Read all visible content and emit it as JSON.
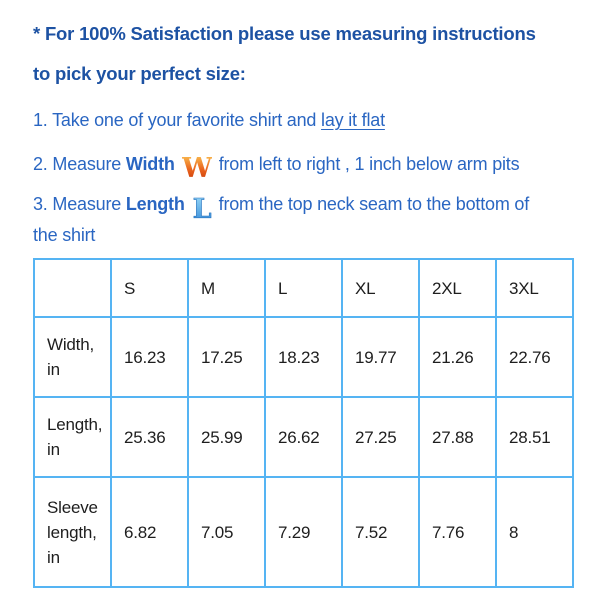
{
  "colors": {
    "heading_blue": "#1d52a3",
    "body_blue": "#2a66c2",
    "table_border_blue": "#55b4f3",
    "table_text": "#1e1e1e",
    "w_icon_gradient_top": "#fdc855",
    "w_icon_gradient_mid": "#e8611c",
    "w_icon_gradient_bottom": "#c23305",
    "l_icon_gradient_top": "#9bdbf9",
    "l_icon_gradient_bottom": "#2f86d6"
  },
  "intro": {
    "line1": "* For 100% Satisfaction please use measuring instructions",
    "line2": "to pick your perfect size:"
  },
  "steps": {
    "step1": {
      "prefix": "1. Take one of your favorite shirt and ",
      "underlined": "lay it flat"
    },
    "step2": {
      "prefix": "2. Measure ",
      "bold": "Width",
      "icon": "w-letter-icon",
      "icon_letter": "W",
      "suffix": "from left to right , 1 inch below arm pits"
    },
    "step3": {
      "prefix": "3. Measure ",
      "bold": "Length",
      "icon": "l-letter-icon",
      "icon_letter": "L",
      "suffix_line1": "from the top neck seam to the bottom of",
      "suffix_line2": "the shirt"
    }
  },
  "size_table": {
    "columns": [
      "",
      "S",
      "M",
      "L",
      "XL",
      "2XL",
      "3XL"
    ],
    "rows": [
      {
        "label": "Width, in",
        "values": [
          "16.23",
          "17.25",
          "18.23",
          "19.77",
          "21.26",
          "22.76"
        ]
      },
      {
        "label": "Length, in",
        "values": [
          "25.36",
          "25.99",
          "26.62",
          "27.25",
          "27.88",
          "28.51"
        ]
      },
      {
        "label": "Sleeve length, in",
        "values": [
          "6.82",
          "7.05",
          "7.29",
          "7.52",
          "7.76",
          "8"
        ]
      }
    ]
  }
}
